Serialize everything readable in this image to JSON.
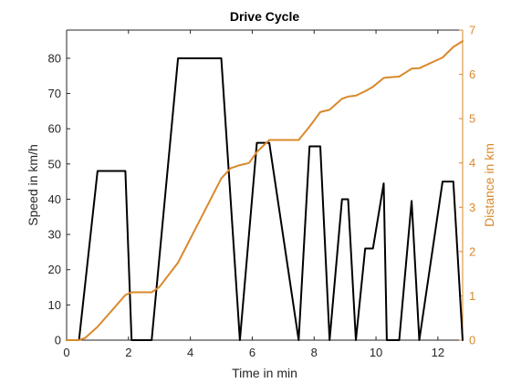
{
  "chart_data": {
    "type": "line",
    "title": "Drive Cycle",
    "xlabel": "Time in min",
    "ylabel_left": "Speed in km/h",
    "ylabel_right": "Distance in km",
    "xlim": [
      0,
      12.8
    ],
    "ylim_left": [
      0,
      88
    ],
    "ylim_right": [
      0,
      7
    ],
    "x_ticks": [
      0,
      2,
      4,
      6,
      8,
      10,
      12
    ],
    "y_ticks_left": [
      0,
      10,
      20,
      30,
      40,
      50,
      60,
      70,
      80
    ],
    "y_ticks_right": [
      0,
      1,
      2,
      3,
      4,
      5,
      6,
      7
    ],
    "grid": false,
    "colors": {
      "speed": "#000000",
      "distance": "#D9892B",
      "axis": "#262626"
    },
    "series": [
      {
        "axis": "left",
        "x": [
          0,
          0.4,
          1.0,
          1.9,
          2.1,
          2.75,
          3.6,
          5.0,
          5.6,
          6.15,
          6.55,
          7.5,
          7.85,
          8.2,
          8.5,
          8.9,
          9.1,
          9.35,
          9.65,
          9.9,
          10.25,
          10.35,
          10.75,
          11.15,
          11.4,
          12.15,
          12.5,
          12.8
        ],
        "values": [
          0,
          0,
          48,
          48,
          0,
          0,
          80,
          80,
          0,
          56,
          56,
          0,
          55,
          55,
          0,
          40,
          40,
          0,
          26,
          26,
          44.5,
          0,
          0,
          39.5,
          0,
          45,
          45,
          0
        ]
      },
      {
        "axis": "right",
        "x": [
          0,
          0.4,
          0.6,
          1.0,
          1.4,
          1.9,
          2.1,
          2.75,
          3.0,
          3.6,
          4.3,
          5.0,
          5.3,
          5.6,
          5.9,
          6.15,
          6.55,
          7.5,
          7.85,
          8.2,
          8.5,
          8.9,
          9.1,
          9.35,
          9.65,
          9.9,
          10.25,
          10.35,
          10.75,
          11.15,
          11.4,
          12.15,
          12.5,
          12.8
        ],
        "values": [
          0,
          0,
          0.05,
          0.3,
          0.62,
          1.02,
          1.08,
          1.08,
          1.2,
          1.75,
          2.7,
          3.65,
          3.88,
          3.95,
          4.0,
          4.25,
          4.52,
          4.52,
          4.82,
          5.15,
          5.2,
          5.45,
          5.5,
          5.52,
          5.62,
          5.72,
          5.92,
          5.93,
          5.95,
          6.13,
          6.14,
          6.38,
          6.62,
          6.75
        ]
      }
    ]
  }
}
